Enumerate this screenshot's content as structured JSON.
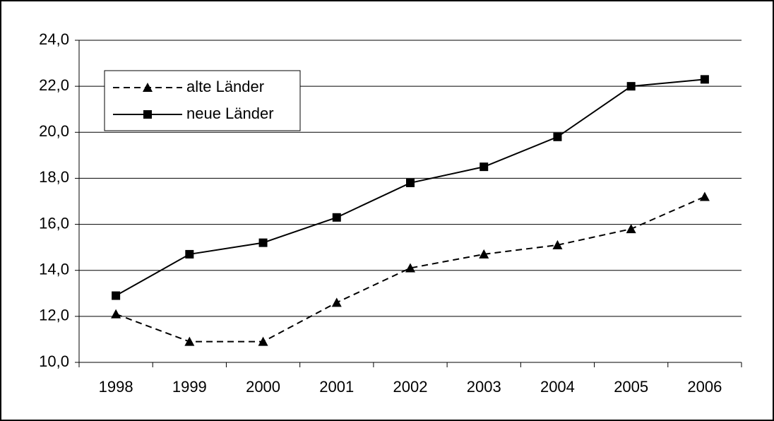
{
  "chart_data": {
    "type": "line",
    "categories": [
      "1998",
      "1999",
      "2000",
      "2001",
      "2002",
      "2003",
      "2004",
      "2005",
      "2006"
    ],
    "series": [
      {
        "name": "alte Länder",
        "color": "#000000",
        "line_style": "dashed",
        "marker": "triangle",
        "values": [
          12.1,
          10.9,
          10.9,
          12.6,
          14.1,
          14.7,
          15.1,
          15.8,
          17.2
        ]
      },
      {
        "name": "neue Länder",
        "color": "#000000",
        "line_style": "solid",
        "marker": "square",
        "values": [
          12.9,
          14.7,
          15.2,
          16.3,
          17.8,
          18.5,
          19.8,
          22.0,
          22.3
        ]
      }
    ],
    "ylim": [
      10,
      24
    ],
    "yticks": [
      {
        "value": 10,
        "label": "10,0"
      },
      {
        "value": 12,
        "label": "12,0"
      },
      {
        "value": 14,
        "label": "14,0"
      },
      {
        "value": 16,
        "label": "16,0"
      },
      {
        "value": 18,
        "label": "18,0"
      },
      {
        "value": 20,
        "label": "20,0"
      },
      {
        "value": 22,
        "label": "22,0"
      },
      {
        "value": 24,
        "label": "24,0"
      }
    ],
    "grid": true,
    "legend": "top-left"
  }
}
